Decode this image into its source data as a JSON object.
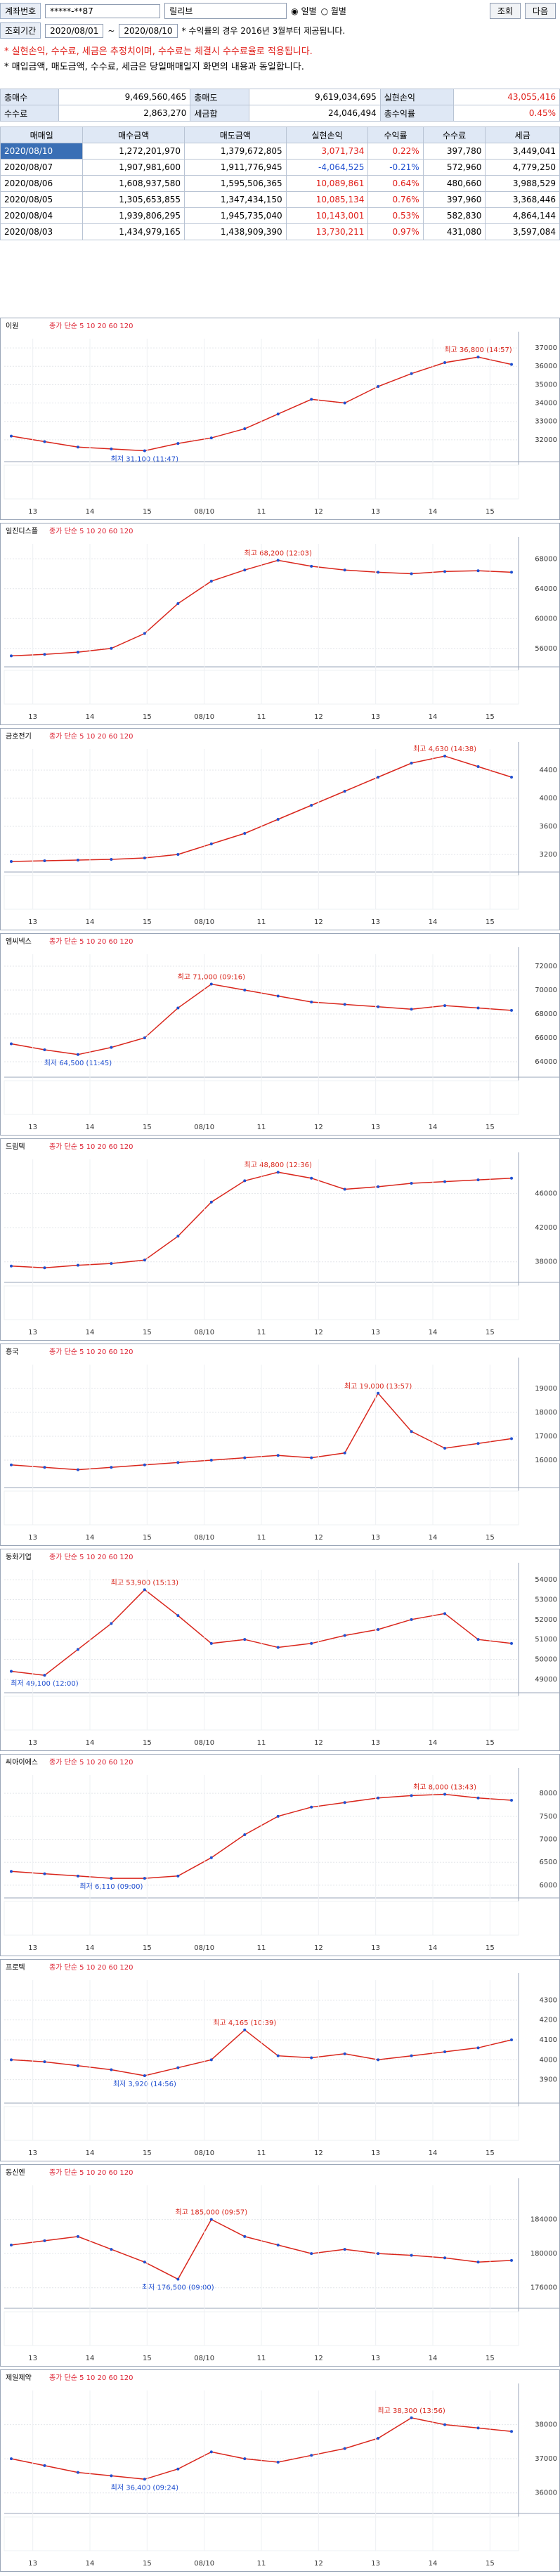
{
  "toolbar": {
    "account_label": "계좌번호",
    "account": "*****-**87",
    "name": "릴리브",
    "daily": "일별",
    "monthly": "월별",
    "query": "조회",
    "next": "다음",
    "period_label": "조회기간",
    "from": "2020/08/01",
    "to": "2020/08/10",
    "period_note": "* 수익률의 경우 2016년 3월부터 제공됩니다."
  },
  "notices": [
    "* 실현손익, 수수료, 세금은 추정치이며, 수수료는 체결시 수수료율로 적용됩니다.",
    "* 매입금액, 매도금액, 수수료, 세금은 당일매매일지 화면의 내용과 동일합니다."
  ],
  "summary": [
    [
      "총매수",
      "9,469,560,465",
      "총매도",
      "9,619,034,695",
      "실현손익",
      "43,055,416"
    ],
    [
      "수수료",
      "2,863,270",
      "세금합",
      "24,046,494",
      "총수익률",
      "0.45%"
    ]
  ],
  "table": {
    "headers": [
      "매매일",
      "매수금액",
      "매도금액",
      "실현손익",
      "수익률",
      "수수료",
      "세금"
    ],
    "rows": [
      [
        "2020/08/10",
        "1,272,201,970",
        "1,379,672,805",
        "3,071,734",
        "0.22%",
        "397,780",
        "3,449,041"
      ],
      [
        "2020/08/07",
        "1,907,981,600",
        "1,911,776,945",
        "-4,064,525",
        "-0.21%",
        "572,960",
        "4,779,250"
      ],
      [
        "2020/08/06",
        "1,608,937,580",
        "1,595,506,365",
        "10,089,861",
        "0.64%",
        "480,660",
        "3,988,529"
      ],
      [
        "2020/08/05",
        "1,305,653,855",
        "1,347,434,150",
        "10,085,134",
        "0.76%",
        "397,960",
        "3,368,446"
      ],
      [
        "2020/08/04",
        "1,939,806,295",
        "1,945,735,040",
        "10,143,001",
        "0.53%",
        "582,830",
        "4,864,144"
      ],
      [
        "2020/08/03",
        "1,434,979,165",
        "1,438,909,390",
        "13,730,211",
        "0.97%",
        "431,080",
        "3,597,084"
      ]
    ]
  },
  "ma_legend": "종가 단순 5 10 20 60 120",
  "x_labels": [
    "13",
    "14",
    "15",
    "08/10",
    "11",
    "12",
    "13",
    "14",
    "15"
  ],
  "chart_data": [
    {
      "type": "line",
      "name": "이원",
      "high": "최고 36,800 (14:57)",
      "low": "최저 31,100 (11:47)",
      "ylim": [
        31000,
        37500
      ],
      "yticks": [
        32000,
        33000,
        34000,
        35000,
        36000,
        37000
      ],
      "values": [
        32200,
        31900,
        31600,
        31500,
        31400,
        31800,
        32100,
        32600,
        33400,
        34200,
        34000,
        34900,
        35600,
        36200,
        36500,
        36100
      ]
    },
    {
      "type": "line",
      "name": "일진디스플",
      "high": "최고 68,200 (12:03)",
      "ylim": [
        54000,
        70000
      ],
      "yticks": [
        56000,
        60000,
        64000,
        68000
      ],
      "values": [
        55000,
        55200,
        55500,
        56000,
        58000,
        62000,
        65000,
        66500,
        67800,
        67000,
        66500,
        66200,
        66000,
        66300,
        66400,
        66200
      ]
    },
    {
      "type": "line",
      "name": "금호전기",
      "high": "최고 4,630 (14:38)",
      "ylim": [
        3000,
        4700
      ],
      "yticks": [
        3200,
        3600,
        4000,
        4400
      ],
      "values": [
        3100,
        3110,
        3120,
        3130,
        3150,
        3200,
        3350,
        3500,
        3700,
        3900,
        4100,
        4300,
        4500,
        4600,
        4450,
        4300
      ]
    },
    {
      "type": "line",
      "name": "엠씨넥스",
      "high": "최고 71,000 (09:16)",
      "low": "최저 64,500 (11:45)",
      "ylim": [
        63000,
        73000
      ],
      "yticks": [
        64000,
        66000,
        68000,
        70000,
        72000
      ],
      "values": [
        65500,
        65000,
        64600,
        65200,
        66000,
        68500,
        70500,
        70000,
        69500,
        69000,
        68800,
        68600,
        68400,
        68700,
        68500,
        68300
      ]
    },
    {
      "type": "line",
      "name": "드림텍",
      "high": "최고 48,800 (12:36)",
      "ylim": [
        36000,
        50000
      ],
      "yticks": [
        38000,
        42000,
        46000
      ],
      "values": [
        37500,
        37300,
        37600,
        37800,
        38200,
        41000,
        45000,
        47500,
        48500,
        47800,
        46500,
        46800,
        47200,
        47400,
        47600,
        47800
      ]
    },
    {
      "type": "line",
      "name": "흥국",
      "high": "최고 19,000 (13:57)",
      "ylim": [
        15000,
        20000
      ],
      "yticks": [
        16000,
        17000,
        18000,
        19000
      ],
      "values": [
        15800,
        15700,
        15600,
        15700,
        15800,
        15900,
        16000,
        16100,
        16200,
        16100,
        16300,
        18800,
        17200,
        16500,
        16700,
        16900
      ]
    },
    {
      "type": "line",
      "name": "동화기업",
      "high": "최고 53,900 (15:13)",
      "low": "최저 49,100 (12:00)",
      "ylim": [
        48500,
        54500
      ],
      "yticks": [
        49000,
        50000,
        51000,
        52000,
        53000,
        54000
      ],
      "values": [
        49400,
        49200,
        50500,
        51800,
        53500,
        52200,
        50800,
        51000,
        50600,
        50800,
        51200,
        51500,
        52000,
        52300,
        51000,
        50800
      ]
    },
    {
      "type": "line",
      "name": "씨아이에스",
      "high": "최고 8,000 (13:43)",
      "low": "최저 6,110 (09:00)",
      "ylim": [
        5800,
        8400
      ],
      "yticks": [
        6000,
        6500,
        7000,
        7500,
        8000
      ],
      "values": [
        6300,
        6250,
        6200,
        6150,
        6150,
        6200,
        6600,
        7100,
        7500,
        7700,
        7800,
        7900,
        7950,
        7980,
        7900,
        7850
      ]
    },
    {
      "type": "line",
      "name": "프로텍",
      "high": "최고 4,165 (10:39)",
      "low": "최저 3,920 (14:56)",
      "ylim": [
        3800,
        4400
      ],
      "yticks": [
        3900,
        4000,
        4100,
        4200,
        4300
      ],
      "values": [
        4000,
        3990,
        3970,
        3950,
        3920,
        3960,
        4000,
        4150,
        4020,
        4010,
        4030,
        4000,
        4020,
        4040,
        4060,
        4100
      ]
    },
    {
      "type": "line",
      "name": "동신엔",
      "high": "최고 185,000 (09:57)",
      "low": "최저 176,500 (09:00)",
      "ylim": [
        174000,
        188000
      ],
      "yticks": [
        176000,
        180000,
        184000
      ],
      "values": [
        181000,
        181500,
        182000,
        180500,
        179000,
        177000,
        184000,
        182000,
        181000,
        180000,
        180500,
        180000,
        179800,
        179500,
        179000,
        179200
      ]
    },
    {
      "type": "line",
      "name": "제일제약",
      "high": "최고 38,300 (13:56)",
      "low": "최저 36,400 (09:24)",
      "ylim": [
        35500,
        39000
      ],
      "yticks": [
        36000,
        37000,
        38000
      ],
      "values": [
        37000,
        36800,
        36600,
        36500,
        36400,
        36700,
        37200,
        37000,
        36900,
        37100,
        37300,
        37600,
        38200,
        38000,
        37900,
        37800
      ]
    }
  ]
}
